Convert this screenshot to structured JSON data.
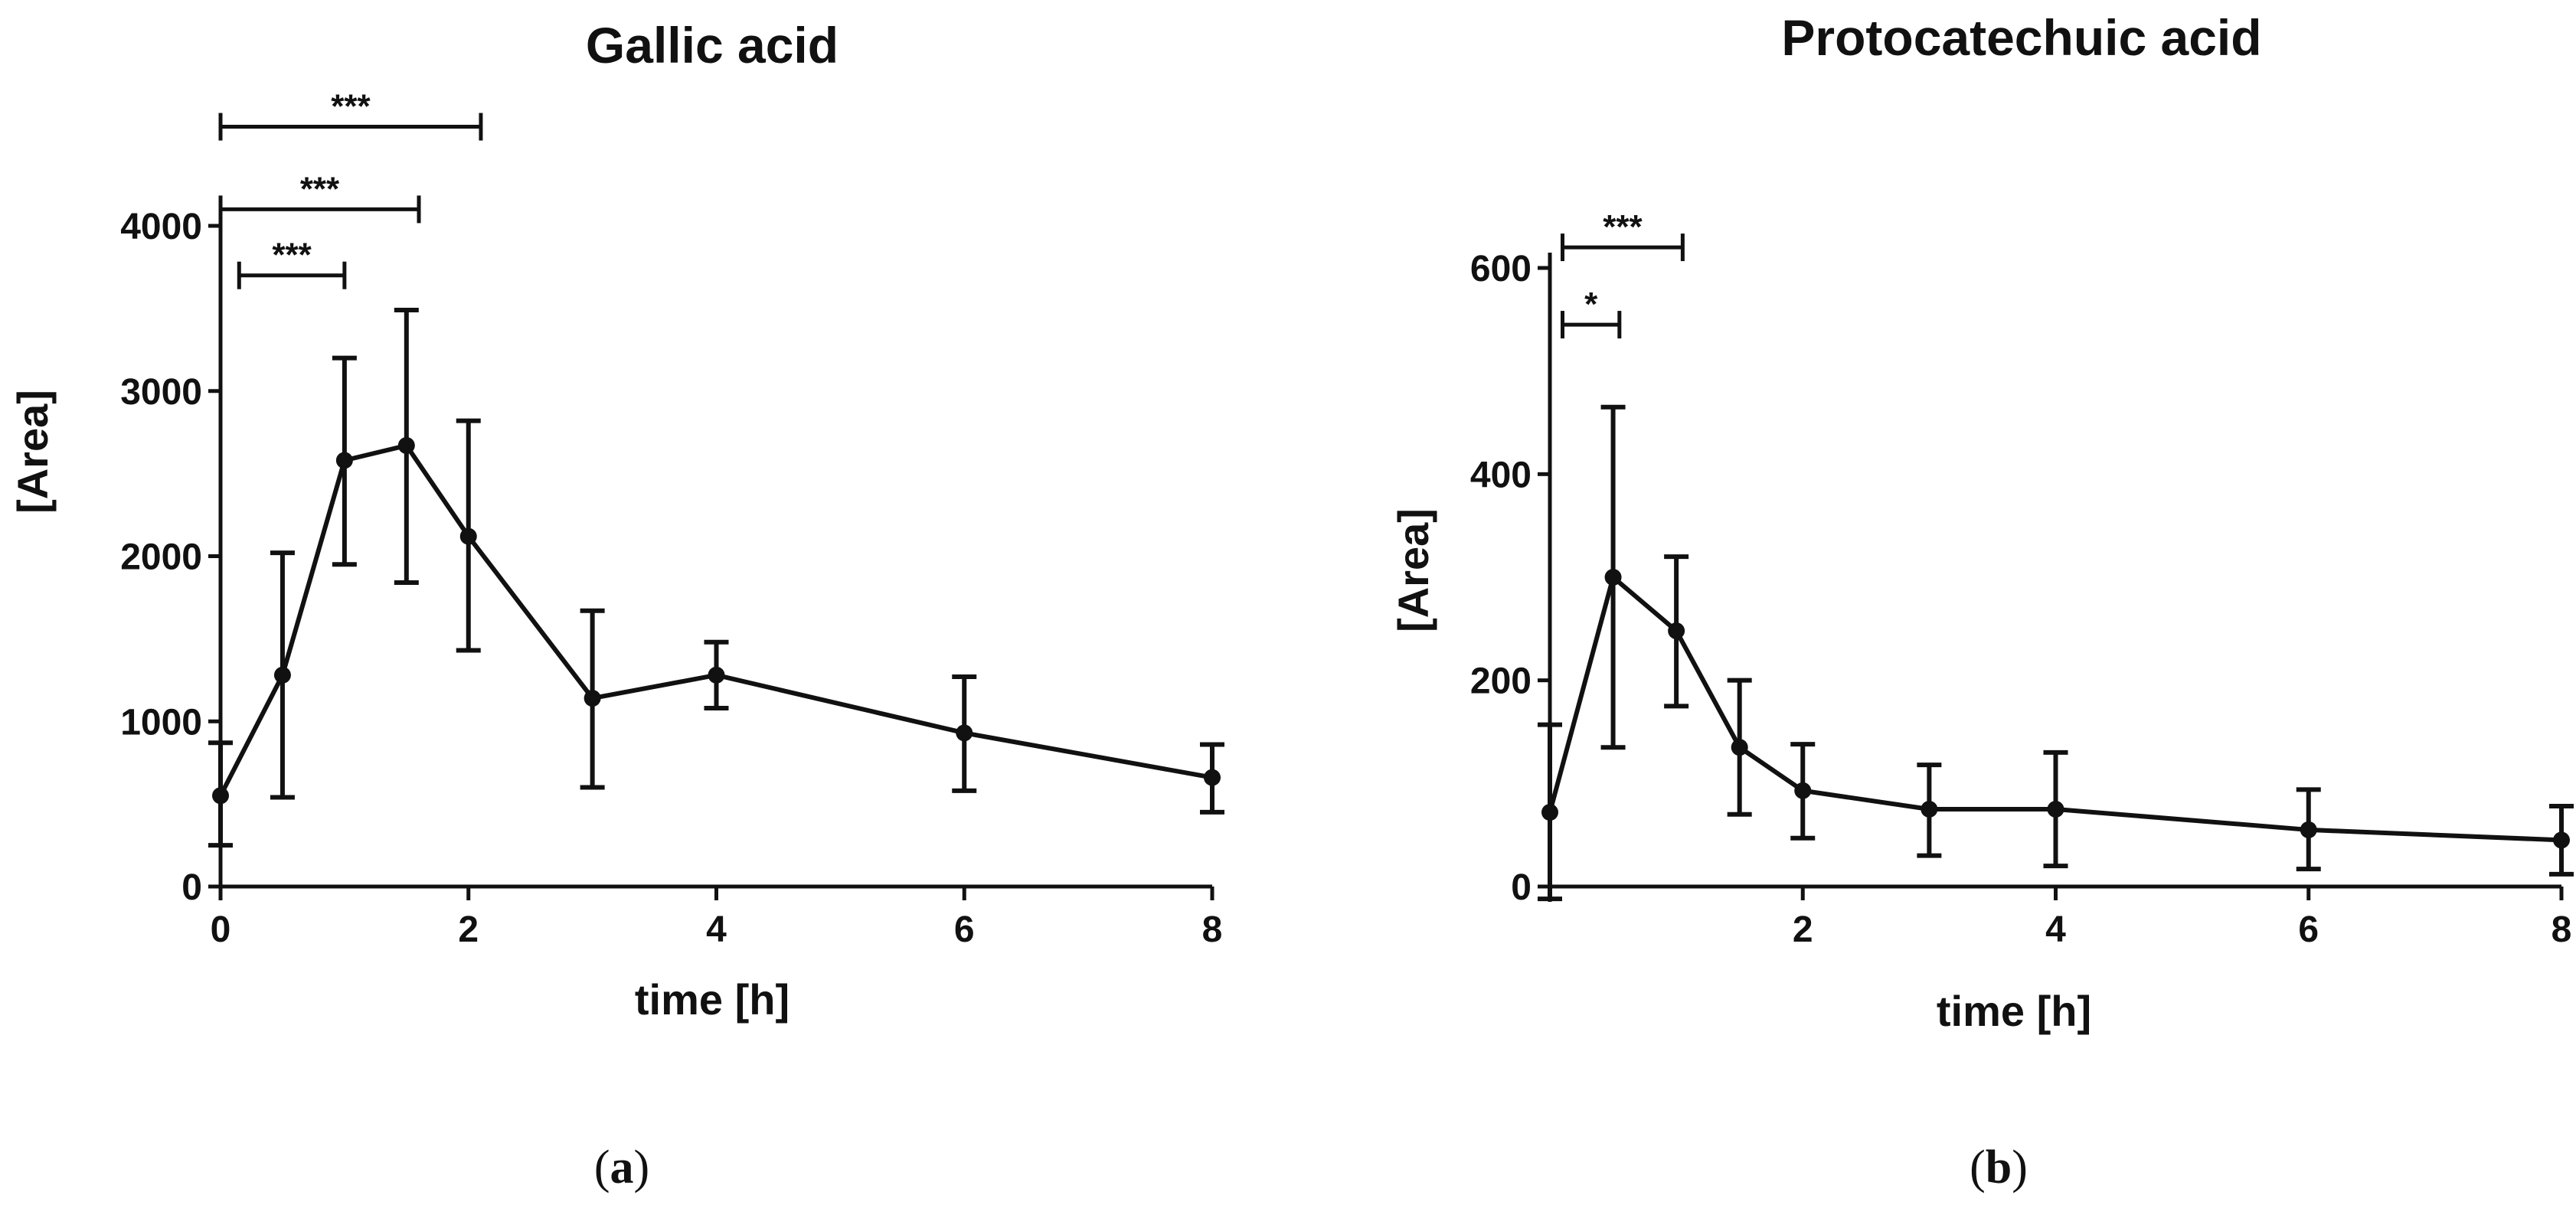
{
  "chart_data": [
    {
      "type": "line",
      "panel": "a",
      "title": "Gallic acid",
      "xlabel": "time [h]",
      "ylabel": "[Area]",
      "xlim": [
        0,
        8
      ],
      "ylim": [
        0,
        4000
      ],
      "xticks": [
        "0",
        "2",
        "4",
        "6",
        "8"
      ],
      "yticks": [
        "0",
        "1000",
        "2000",
        "3000",
        "4000"
      ],
      "grid": false,
      "color": "#111111",
      "series": [
        {
          "x": [
            0,
            0.5,
            1,
            1.5,
            2,
            3,
            4,
            6,
            8
          ],
          "y": [
            550,
            1280,
            2580,
            2670,
            2120,
            1140,
            1280,
            930,
            660
          ],
          "err_low": [
            250,
            540,
            1950,
            1840,
            1430,
            600,
            1080,
            580,
            450
          ],
          "err_high": [
            870,
            2020,
            3200,
            3490,
            2820,
            1670,
            1480,
            1270,
            860
          ]
        }
      ],
      "significance": [
        {
          "x1": 0.15,
          "x2": 1.0,
          "y": 3700,
          "label": "***"
        },
        {
          "x1": 0,
          "x2": 1.6,
          "y": 4100,
          "label": "***"
        },
        {
          "x1": 0,
          "x2": 2.1,
          "y": 4600,
          "label": "***"
        }
      ]
    },
    {
      "type": "line",
      "panel": "b",
      "title": "Protocatechuic acid",
      "xlabel": "time [h]",
      "ylabel": "[Area]",
      "xlim": [
        0,
        8
      ],
      "ylim": [
        0,
        600
      ],
      "xticks": [
        "2",
        "4",
        "6",
        "8"
      ],
      "yticks": [
        "0",
        "200",
        "400",
        "600"
      ],
      "grid": false,
      "color": "#111111",
      "series": [
        {
          "x": [
            0,
            0.5,
            1,
            1.5,
            2,
            3,
            4,
            6,
            8
          ],
          "y": [
            72,
            300,
            248,
            135,
            93,
            75,
            75,
            55,
            45
          ],
          "err_low": [
            -12,
            135,
            175,
            70,
            47,
            30,
            20,
            17,
            12
          ],
          "err_high": [
            157,
            465,
            320,
            200,
            138,
            118,
            130,
            94,
            78
          ]
        }
      ],
      "significance": [
        {
          "x1": 0.1,
          "x2": 0.55,
          "y": 545,
          "label": "*"
        },
        {
          "x1": 0.1,
          "x2": 1.05,
          "y": 620,
          "label": "***"
        }
      ]
    }
  ],
  "panel_labels": [
    {
      "open": "(",
      "letter": "a",
      "close": ")"
    },
    {
      "open": "(",
      "letter": "b",
      "close": ")"
    }
  ]
}
